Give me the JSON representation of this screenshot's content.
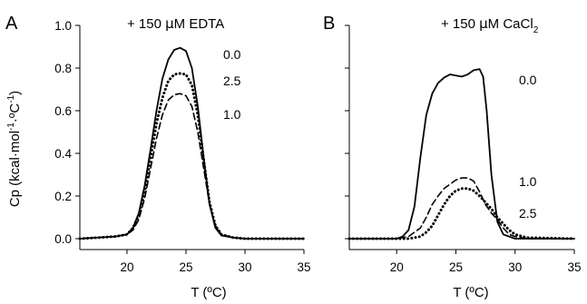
{
  "chart_data": [
    {
      "type": "line",
      "panel": "A",
      "title_parts": [
        "+ 150 ",
        "μ",
        "M EDTA"
      ],
      "xlabel": "T (ºC)",
      "ylabel_parts": [
        "Cp (kcal·mol",
        "-1",
        "·ºC",
        "-1",
        ")"
      ],
      "xlim": [
        16,
        35
      ],
      "ylim": [
        0,
        1.0
      ],
      "x_ticks": [
        "20",
        "25",
        "30",
        "35"
      ],
      "y_ticks": [
        "0.0",
        "0.2",
        "0.4",
        "0.6",
        "0.8",
        "1.0"
      ],
      "series": [
        {
          "name": "0.0",
          "dash": "solid",
          "x": [
            16,
            19,
            20,
            20.5,
            21,
            21.5,
            22,
            22.5,
            23,
            23.5,
            24,
            24.5,
            25,
            25.5,
            26,
            26.5,
            27,
            27.5,
            28,
            29,
            30,
            35
          ],
          "y": [
            0.0,
            0.01,
            0.02,
            0.05,
            0.12,
            0.25,
            0.42,
            0.6,
            0.75,
            0.84,
            0.885,
            0.895,
            0.88,
            0.8,
            0.62,
            0.38,
            0.16,
            0.05,
            0.015,
            0.005,
            0.0,
            0.0
          ]
        },
        {
          "name": "2.5",
          "dash": "dotted",
          "x": [
            16,
            19,
            20,
            20.5,
            21,
            21.5,
            22,
            22.5,
            23,
            23.5,
            24,
            24.5,
            25,
            25.5,
            26,
            26.5,
            27,
            27.5,
            28,
            29,
            30,
            35
          ],
          "y": [
            0.0,
            0.01,
            0.02,
            0.05,
            0.11,
            0.22,
            0.38,
            0.54,
            0.66,
            0.74,
            0.77,
            0.775,
            0.77,
            0.72,
            0.58,
            0.37,
            0.17,
            0.06,
            0.02,
            0.005,
            0.0,
            0.0
          ]
        },
        {
          "name": "1.0",
          "dash": "dashed",
          "x": [
            16,
            19,
            20,
            20.5,
            21,
            21.5,
            22,
            22.5,
            23,
            23.5,
            24,
            24.5,
            25,
            25.5,
            26,
            26.5,
            27,
            27.5,
            28,
            29,
            30,
            35
          ],
          "y": [
            0.0,
            0.01,
            0.02,
            0.04,
            0.09,
            0.19,
            0.33,
            0.47,
            0.58,
            0.65,
            0.675,
            0.68,
            0.67,
            0.62,
            0.5,
            0.33,
            0.16,
            0.06,
            0.02,
            0.005,
            0.0,
            0.0
          ]
        }
      ],
      "annotations": [
        "0.0",
        "2.5",
        "1.0"
      ]
    },
    {
      "type": "line",
      "panel": "B",
      "title_parts": [
        "+ 150 ",
        "μ",
        "M CaCl",
        "2"
      ],
      "xlabel": "T (ºC)",
      "xlim": [
        16,
        35
      ],
      "ylim": [
        0,
        1.0
      ],
      "x_ticks": [
        "20",
        "25",
        "30",
        "35"
      ],
      "series": [
        {
          "name": "0.0",
          "dash": "solid",
          "x": [
            16,
            20,
            20.5,
            21,
            21.5,
            22,
            22.5,
            23,
            23.5,
            24,
            24.5,
            25,
            25.5,
            26,
            26.5,
            27,
            27.3,
            27.6,
            28,
            28.5,
            29,
            30,
            35
          ],
          "y": [
            0.0,
            0.0,
            0.01,
            0.04,
            0.15,
            0.38,
            0.58,
            0.68,
            0.73,
            0.755,
            0.77,
            0.765,
            0.76,
            0.77,
            0.79,
            0.795,
            0.76,
            0.6,
            0.3,
            0.08,
            0.02,
            0.0,
            0.0
          ]
        },
        {
          "name": "1.0",
          "dash": "dashed",
          "x": [
            16,
            20,
            21,
            22,
            22.5,
            23,
            23.5,
            24,
            24.5,
            25,
            25.5,
            26,
            26.5,
            27,
            27.5,
            28,
            28.5,
            29,
            29.5,
            30,
            31,
            35
          ],
          "y": [
            0.0,
            0.0,
            0.01,
            0.05,
            0.1,
            0.16,
            0.2,
            0.235,
            0.255,
            0.275,
            0.285,
            0.285,
            0.27,
            0.22,
            0.16,
            0.12,
            0.09,
            0.05,
            0.02,
            0.01,
            0.0,
            0.0
          ]
        },
        {
          "name": "2.5",
          "dash": "dotted",
          "x": [
            16,
            21,
            22,
            22.5,
            23,
            23.5,
            24,
            24.5,
            25,
            25.5,
            26,
            26.5,
            27,
            27.5,
            28,
            28.5,
            29,
            29.5,
            30,
            31,
            35
          ],
          "y": [
            0.0,
            0.0,
            0.01,
            0.03,
            0.06,
            0.11,
            0.16,
            0.2,
            0.225,
            0.235,
            0.235,
            0.225,
            0.2,
            0.17,
            0.14,
            0.1,
            0.07,
            0.04,
            0.02,
            0.005,
            0.0
          ]
        }
      ],
      "annotations": [
        "0.0",
        "1.0",
        "2.5"
      ]
    }
  ]
}
